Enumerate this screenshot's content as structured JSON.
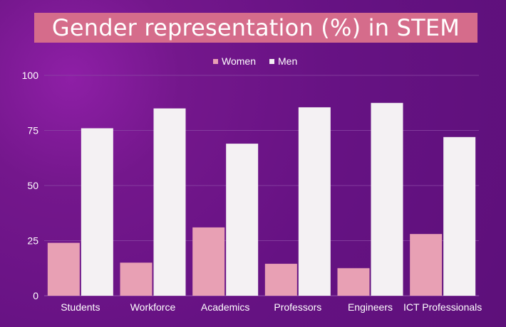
{
  "colors": {
    "women": "#e8a0b4",
    "men": "#f4f1f3",
    "title_bg": "#d56c8b",
    "grid": "#8d4aa6"
  },
  "chart_data": {
    "type": "bar",
    "title": "Gender representation (%) in STEM",
    "categories": [
      "Students",
      "Workforce",
      "Academics",
      "Professors",
      "Engineers",
      "ICT Professionals"
    ],
    "series": [
      {
        "name": "Women",
        "values": [
          24,
          15,
          31,
          14.5,
          12.5,
          28
        ]
      },
      {
        "name": "Men",
        "values": [
          76,
          85,
          69,
          85.5,
          87.5,
          72
        ]
      }
    ],
    "ylim": [
      0,
      100
    ],
    "yticks": [
      0,
      25,
      50,
      75,
      100
    ],
    "grid": true,
    "legend": "top-center",
    "xlabel": "",
    "ylabel": ""
  }
}
